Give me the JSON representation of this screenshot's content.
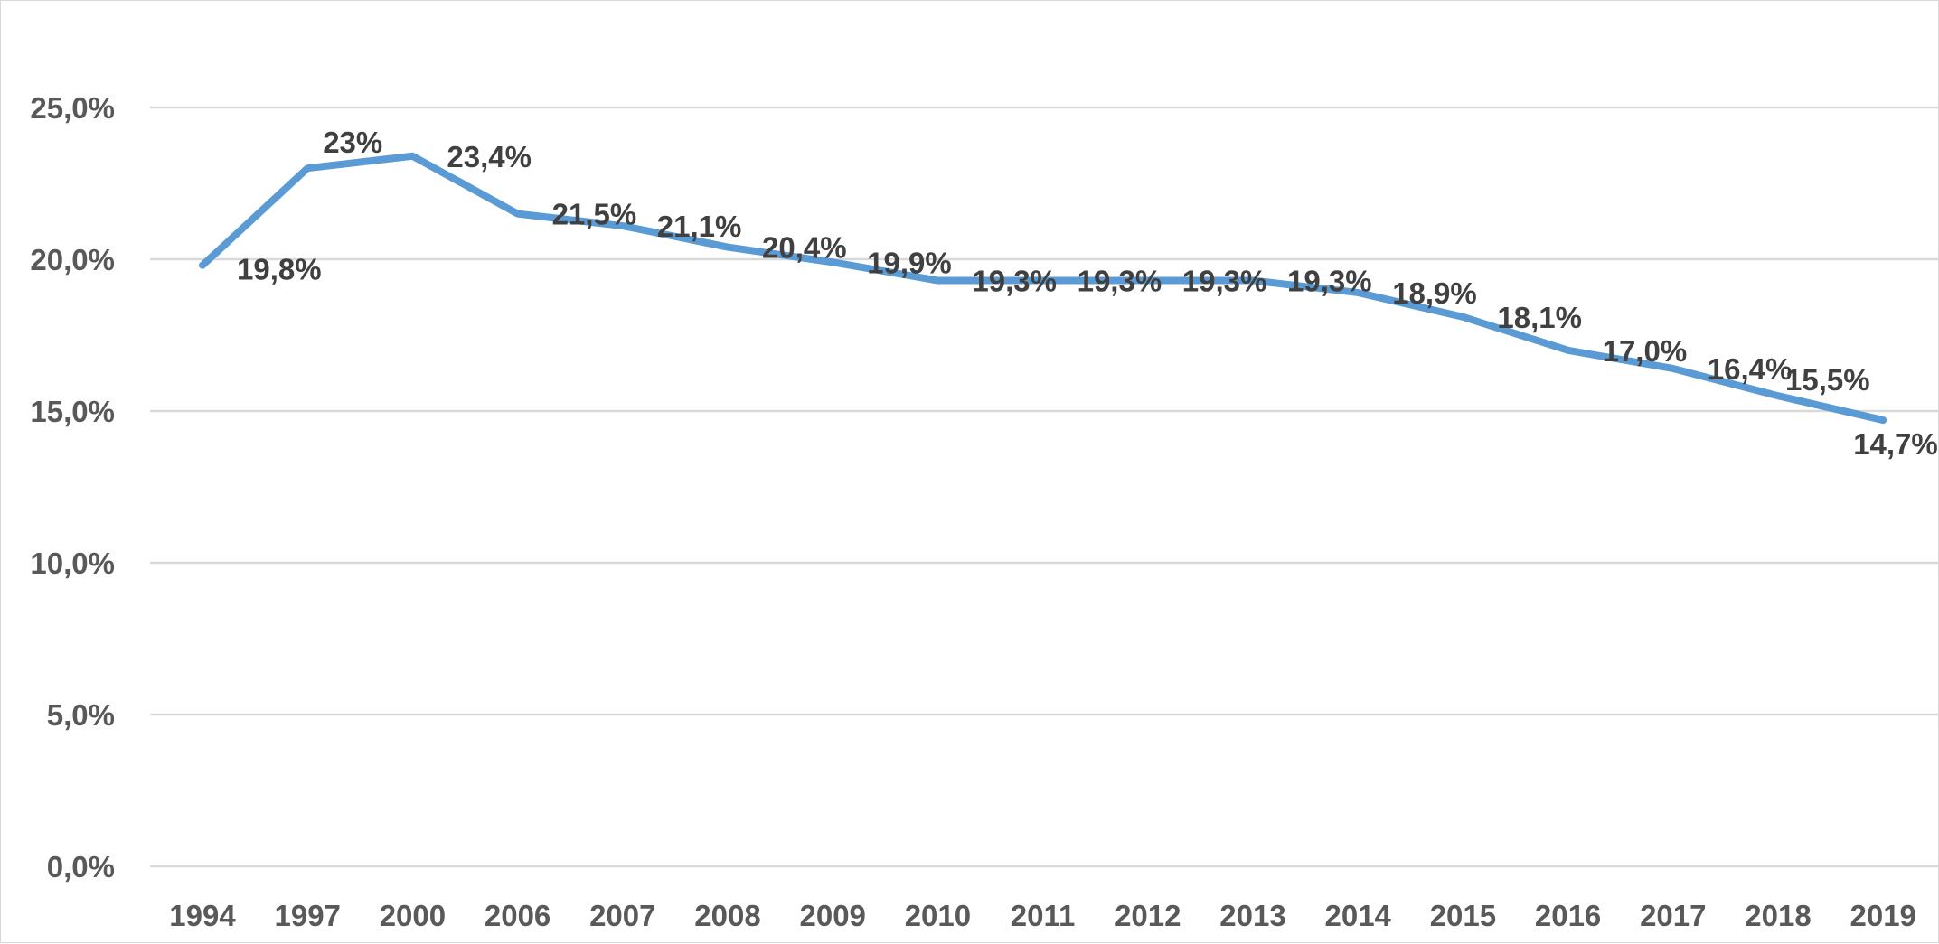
{
  "chart_data": {
    "type": "line",
    "title": "",
    "xlabel": "",
    "ylabel": "",
    "categories": [
      "1994",
      "1997",
      "2000",
      "2006",
      "2007",
      "2008",
      "2009",
      "2010",
      "2011",
      "2012",
      "2013",
      "2014",
      "2015",
      "2016",
      "2017",
      "2018",
      "2019"
    ],
    "series": [
      {
        "values": [
          19.8,
          23.0,
          23.4,
          21.5,
          21.1,
          20.4,
          19.9,
          19.3,
          19.3,
          19.3,
          19.3,
          18.9,
          18.1,
          17.0,
          16.4,
          15.5,
          14.7
        ],
        "data_labels": [
          "19,8%",
          "23%",
          "23,4%",
          "21,5%",
          "21,1%",
          "20,4%",
          "19,9%",
          "19,3%",
          "19,3%",
          "19,3%",
          "19,3%",
          "18,9%",
          "18,1%",
          "17,0%",
          "16,4%",
          "15,5%",
          "14,7%"
        ],
        "color": "#5b9bd5"
      }
    ],
    "ylim": [
      0,
      25
    ],
    "y_ticks": [
      0,
      5,
      10,
      15,
      20,
      25
    ],
    "y_tick_labels": [
      "0,0%",
      "5,0%",
      "10,0%",
      "15,0%",
      "20,0%",
      "25,0%"
    ],
    "grid": true,
    "gridline_color": "#d9d9d9",
    "legend": "none"
  }
}
